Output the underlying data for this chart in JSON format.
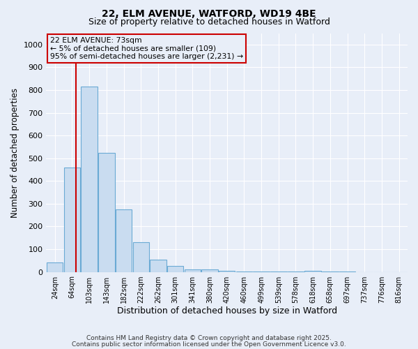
{
  "title": "22, ELM AVENUE, WATFORD, WD19 4BE",
  "subtitle": "Size of property relative to detached houses in Watford",
  "xlabel": "Distribution of detached houses by size in Watford",
  "ylabel": "Number of detached properties",
  "bar_labels": [
    "24sqm",
    "64sqm",
    "103sqm",
    "143sqm",
    "182sqm",
    "222sqm",
    "262sqm",
    "301sqm",
    "341sqm",
    "380sqm",
    "420sqm",
    "460sqm",
    "499sqm",
    "539sqm",
    "578sqm",
    "618sqm",
    "658sqm",
    "697sqm",
    "737sqm",
    "776sqm",
    "816sqm"
  ],
  "bar_values": [
    42,
    460,
    815,
    525,
    275,
    130,
    55,
    25,
    10,
    12,
    5,
    3,
    2,
    1,
    1,
    5,
    1,
    1,
    0,
    0,
    0
  ],
  "bar_color": "#c9dcf0",
  "bar_edge_color": "#6aaad4",
  "property_line_x": 1.22,
  "property_size": "73sqm",
  "annotation_line1": "22 ELM AVENUE: 73sqm",
  "annotation_line2": "← 5% of detached houses are smaller (109)",
  "annotation_line3": "95% of semi-detached houses are larger (2,231) →",
  "annotation_box_color": "#cc0000",
  "ylim": [
    0,
    1050
  ],
  "yticks": [
    0,
    100,
    200,
    300,
    400,
    500,
    600,
    700,
    800,
    900,
    1000
  ],
  "bg_color": "#e8eef8",
  "grid_color": "#ffffff",
  "footer1": "Contains HM Land Registry data © Crown copyright and database right 2025.",
  "footer2": "Contains public sector information licensed under the Open Government Licence v3.0."
}
